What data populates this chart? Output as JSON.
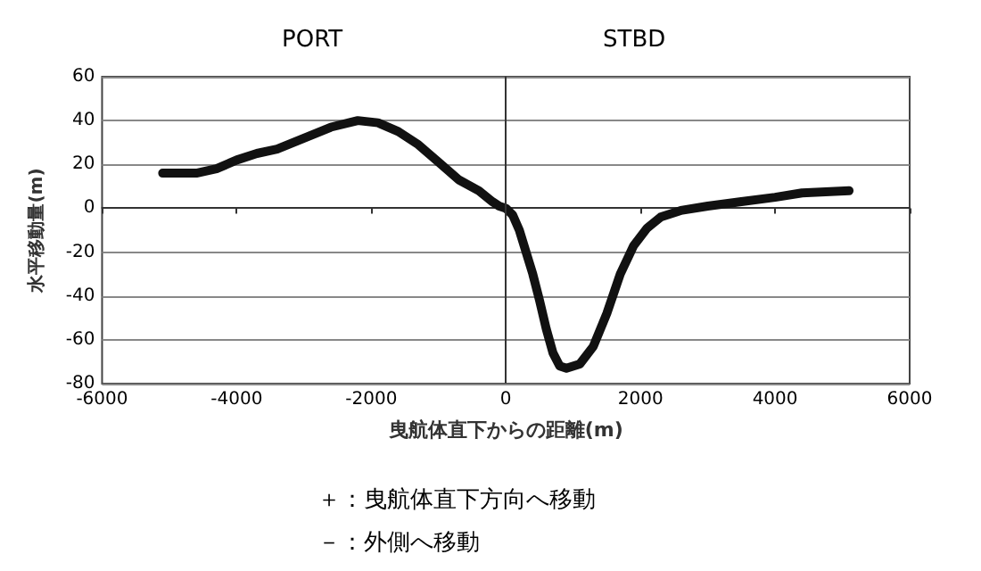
{
  "chart_data": {
    "type": "line",
    "xlabel": "曳航体直下からの距離(m)",
    "ylabel": "水平移動量(m)",
    "annotations": [
      "PORT",
      "STBD",
      "＋：曳航体直下方向へ移動",
      "－：外側へ移動"
    ],
    "x": [
      -5100,
      -4600,
      -4300,
      -4000,
      -3700,
      -3400,
      -3000,
      -2600,
      -2200,
      -1900,
      -1600,
      -1300,
      -1000,
      -700,
      -400,
      -200,
      -100,
      0,
      100,
      200,
      400,
      500,
      600,
      700,
      800,
      900,
      1100,
      1300,
      1500,
      1700,
      1900,
      2100,
      2300,
      2600,
      3000,
      3500,
      4000,
      4400,
      5100
    ],
    "series": [
      {
        "color": "#111111",
        "values": [
          16,
          16,
          18,
          22,
          25,
          27,
          32,
          37,
          40,
          39,
          35,
          29,
          21,
          13,
          8,
          3,
          1,
          0,
          -3,
          -10,
          -30,
          -42,
          -55,
          -66,
          -72,
          -73,
          -71,
          -63,
          -48,
          -30,
          -17,
          -9,
          -4,
          -1,
          1,
          3,
          5,
          7,
          8
        ]
      }
    ],
    "xlim": [
      -6000,
      6000
    ],
    "xticks": [
      -6000,
      -4000,
      -2000,
      0,
      2000,
      4000,
      6000
    ],
    "ylim": [
      -80,
      60
    ],
    "yticks": [
      -80,
      -60,
      -40,
      -20,
      0,
      20,
      40,
      60
    ],
    "ref_lines": [
      {
        "axis": "x",
        "value": 0,
        "color": "#333333",
        "line_style": "solid"
      }
    ],
    "grid": "y",
    "marker": "none",
    "line_style": "solid"
  }
}
